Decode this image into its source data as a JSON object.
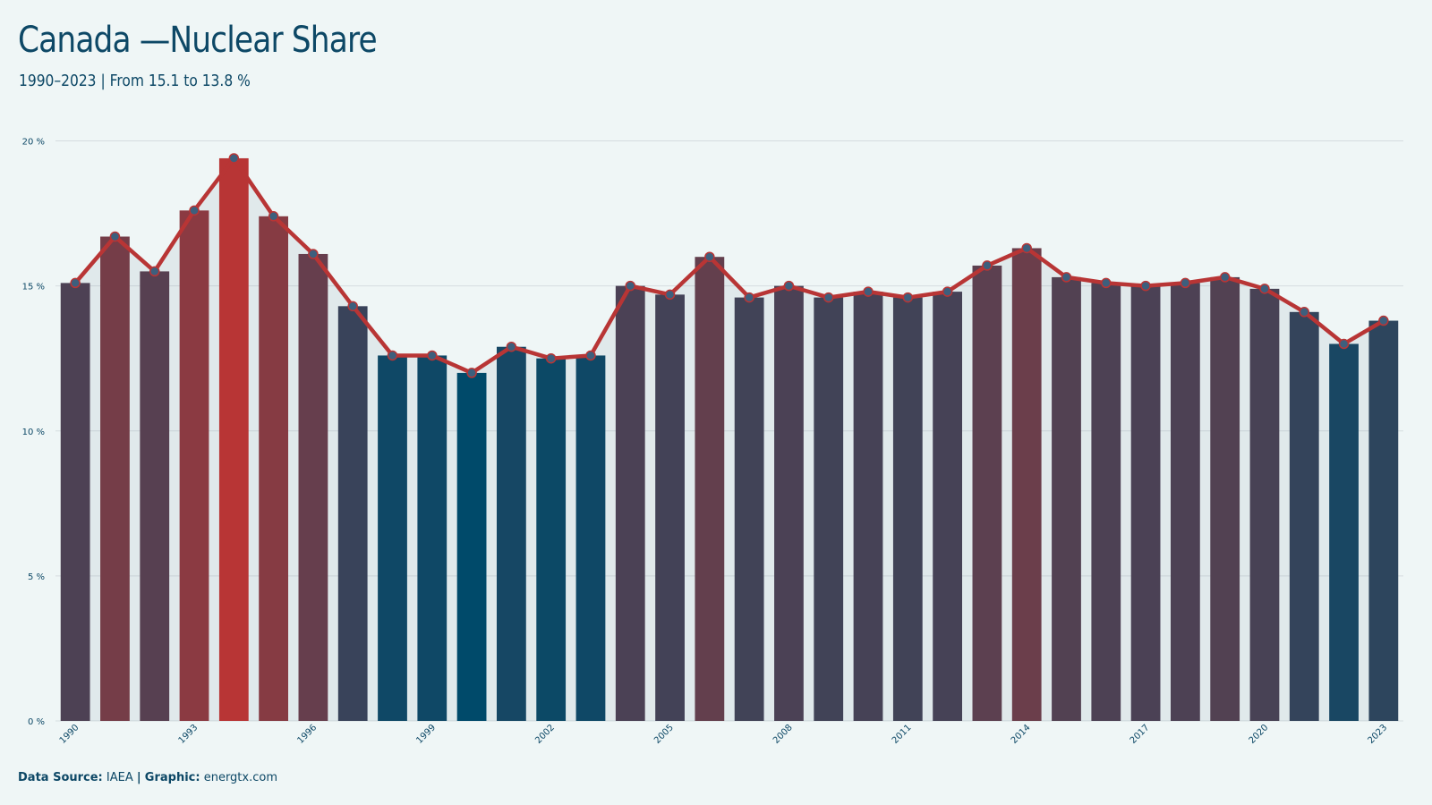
{
  "header": {
    "title": "Canada —Nuclear Share",
    "subtitle": "1990–2023 | From 15.1 to 13.8 %"
  },
  "footer": {
    "source_label": "Data Source:",
    "source_value": "IAEA",
    "separator": "|",
    "graphic_label": "Graphic:",
    "graphic_value": "energtx.com"
  },
  "colors": {
    "background": "#eff6f6",
    "line": "#b83535",
    "low": "#004a6a",
    "high": "#b83535",
    "marker_fill": "#3d5f7d",
    "grid": "#d6dde0",
    "text": "#0d4866"
  },
  "chart_data": {
    "type": "bar",
    "title": "Canada —Nuclear Share",
    "subtitle": "1990–2023 | From 15.1 to 13.8 %",
    "xlabel": "",
    "ylabel": "",
    "ylim": [
      0,
      20
    ],
    "yticks": [
      0,
      5,
      10,
      15,
      20
    ],
    "ytick_suffix": " %",
    "x_tick_labels": [
      "1990",
      "1993",
      "1996",
      "1999",
      "2002",
      "2005",
      "2008",
      "2011",
      "2014",
      "2017",
      "2020",
      "2023"
    ],
    "grid": true,
    "legend": "none",
    "overlay": "line with markers",
    "categories": [
      1990,
      1991,
      1992,
      1993,
      1994,
      1995,
      1996,
      1997,
      1998,
      1999,
      2000,
      2001,
      2002,
      2003,
      2004,
      2005,
      2006,
      2007,
      2008,
      2009,
      2010,
      2011,
      2012,
      2013,
      2014,
      2015,
      2016,
      2017,
      2018,
      2019,
      2020,
      2021,
      2022,
      2023
    ],
    "values": [
      15.1,
      16.7,
      15.5,
      17.6,
      19.4,
      17.4,
      16.1,
      14.3,
      12.6,
      12.6,
      12.0,
      12.9,
      12.5,
      12.6,
      15.0,
      14.7,
      16.0,
      14.6,
      15.0,
      14.6,
      14.8,
      14.6,
      14.8,
      15.7,
      16.3,
      15.3,
      15.1,
      15.0,
      15.1,
      15.3,
      14.9,
      14.1,
      13.0,
      13.8
    ]
  }
}
